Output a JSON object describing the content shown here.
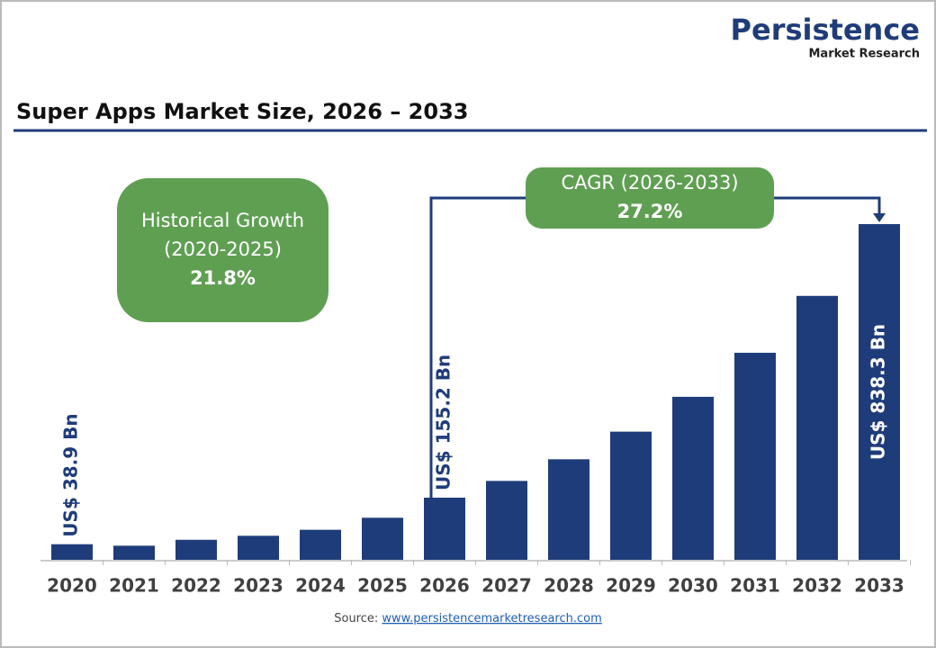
{
  "logo": {
    "name": "Persistence",
    "tagline": "Market Research"
  },
  "chart_data": {
    "type": "bar",
    "title": "Super Apps Market Size, 2026 – 2033",
    "categories": [
      "2020",
      "2021",
      "2022",
      "2023",
      "2024",
      "2025",
      "2026",
      "2027",
      "2028",
      "2029",
      "2030",
      "2031",
      "2032",
      "2033"
    ],
    "values": [
      38.9,
      35.2,
      50,
      60,
      75,
      105,
      155.2,
      197,
      251,
      320,
      407,
      517,
      659,
      838.3
    ],
    "value_labels": [
      "US$ 38.9 Bn",
      null,
      null,
      null,
      null,
      null,
      "US$ 155.2 Bn",
      null,
      null,
      null,
      null,
      null,
      null,
      "US$ 838.3 Bn"
    ],
    "color": "#1f3c7a",
    "annotations": [
      {
        "lines": [
          "Historical Growth",
          "(2020-2025)",
          "21.8%"
        ],
        "color": "#5f9f52"
      },
      {
        "lines": [
          "CAGR (2026-2033)",
          "27.2%"
        ],
        "color": "#5f9f52"
      }
    ]
  },
  "source": {
    "label": "Source:",
    "url": "www.persistencemarketresearch.com"
  }
}
